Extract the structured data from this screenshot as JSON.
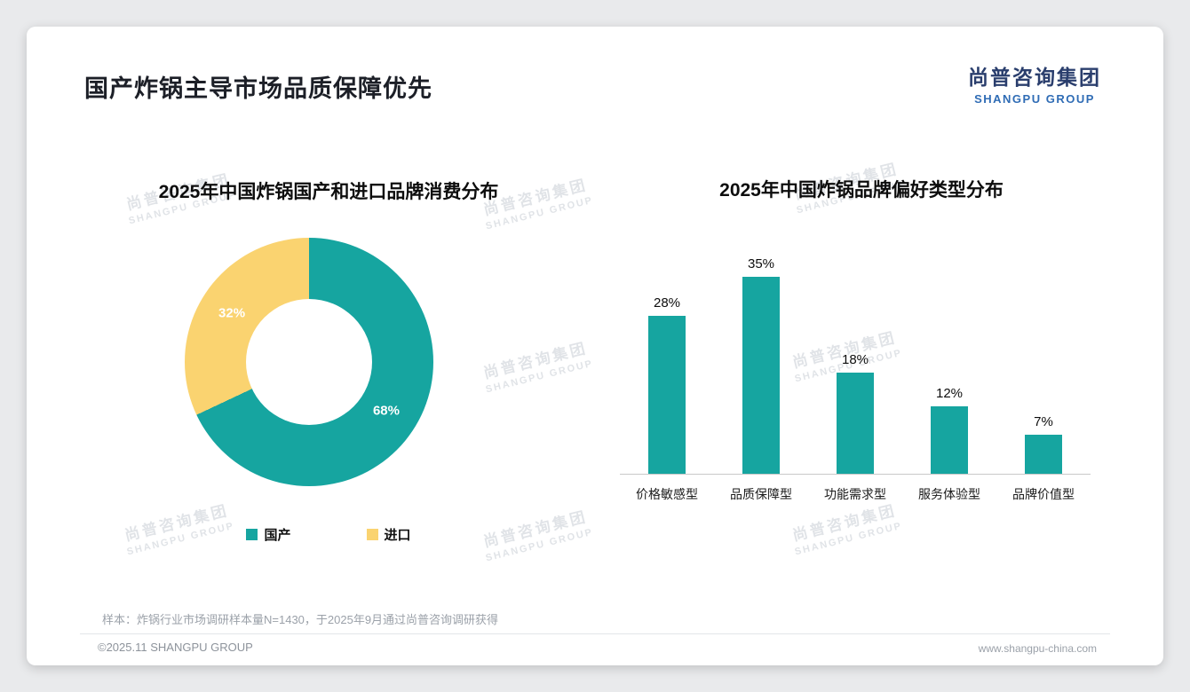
{
  "page": {
    "title": "国产炸锅主导市场品质保障优先",
    "footnote": "样本：炸锅行业市场调研样本量N=1430，于2025年9月通过尚普咨询调研获得",
    "footer_left": "©2025.11 SHANGPU GROUP",
    "footer_right": "www.shangpu-china.com"
  },
  "logo": {
    "cn": "尚普咨询集团",
    "en": "SHANGPU GROUP"
  },
  "watermark": {
    "cn": "尚普咨询集团",
    "en": "SHANGPU GROUP"
  },
  "colors": {
    "teal": "#16A5A0",
    "yellow": "#FAD370",
    "axis": "#c9c9c9"
  },
  "chart_data": [
    {
      "type": "pie",
      "variant": "donut",
      "title": "2025年中国炸锅国产和进口品牌消费分布",
      "labels": [
        "国产",
        "进口"
      ],
      "values": [
        68,
        32
      ],
      "value_labels": [
        "68%",
        "32%"
      ],
      "colors": [
        "#16A5A0",
        "#FAD370"
      ],
      "legend_position": "bottom"
    },
    {
      "type": "bar",
      "title": "2025年中国炸锅品牌偏好类型分布",
      "categories": [
        "价格敏感型",
        "品质保障型",
        "功能需求型",
        "服务体验型",
        "品牌价值型"
      ],
      "values": [
        28,
        35,
        18,
        12,
        7
      ],
      "value_labels": [
        "28%",
        "35%",
        "18%",
        "12%",
        "7%"
      ],
      "bar_color": "#16A5A0",
      "ylim": [
        0,
        35
      ],
      "grid": false,
      "legend": false
    }
  ]
}
